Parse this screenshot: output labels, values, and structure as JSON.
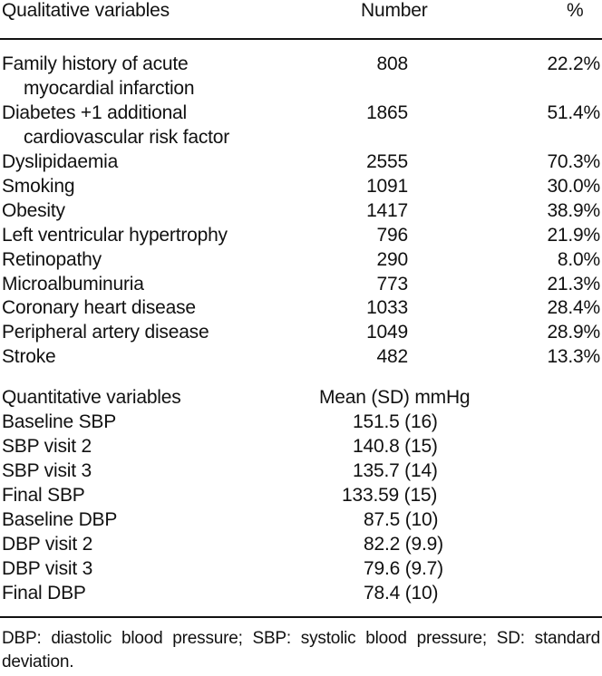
{
  "header": {
    "qualitative_label": "Qualitative variables",
    "number_label": "Number",
    "percent_label": "%"
  },
  "qualitative": [
    {
      "label_line1": "Family history of acute",
      "label_line2": "myocardial infarction",
      "number": "808",
      "percent": "22.2%"
    },
    {
      "label_line1": "Diabetes +1 additional",
      "label_line2": "cardiovascular risk factor",
      "number": "1865",
      "percent": "51.4%"
    },
    {
      "label_line1": "Dyslipidaemia",
      "number": "2555",
      "percent": "70.3%"
    },
    {
      "label_line1": "Smoking",
      "number": "1091",
      "percent": "30.0%"
    },
    {
      "label_line1": "Obesity",
      "number": "1417",
      "percent": "38.9%"
    },
    {
      "label_line1": "Left ventricular hypertrophy",
      "number": "796",
      "percent": "21.9%"
    },
    {
      "label_line1": "Retinopathy",
      "number": "290",
      "percent": "8.0%"
    },
    {
      "label_line1": "Microalbuminuria",
      "number": "773",
      "percent": "21.3%"
    },
    {
      "label_line1": "Coronary heart disease",
      "number": "1033",
      "percent": "28.4%"
    },
    {
      "label_line1": "Peripheral artery disease",
      "number": "1049",
      "percent": "28.9%"
    },
    {
      "label_line1": "Stroke",
      "number": "482",
      "percent": "13.3%"
    }
  ],
  "quantitative_header": {
    "label": "Quantitative variables",
    "mean_label": "Mean (SD) mmHg"
  },
  "quantitative": [
    {
      "label": "Baseline SBP",
      "mean": "151.5 (16)"
    },
    {
      "label": "SBP visit 2",
      "mean": "140.8 (15)"
    },
    {
      "label": "SBP visit 3",
      "mean": "135.7 (14)"
    },
    {
      "label": "Final SBP",
      "mean": "133.59 (15)"
    },
    {
      "label": "Baseline DBP",
      "mean": "87.5 (10)"
    },
    {
      "label": "DBP visit 2",
      "mean": "82.2 (9.9)"
    },
    {
      "label": "DBP visit 3",
      "mean": "79.6 (9.7)"
    },
    {
      "label": "Final DBP",
      "mean": "78.4 (10)"
    }
  ],
  "footnote": "DBP: diastolic blood pressure; SBP: systolic blood pressure; SD: standard deviation."
}
